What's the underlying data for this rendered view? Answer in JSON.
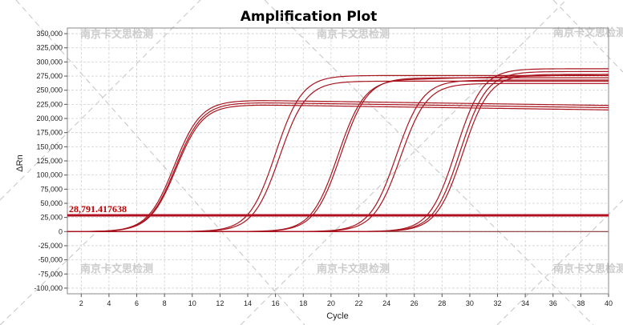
{
  "chart_data": {
    "type": "line",
    "title": "Amplification Plot",
    "xlabel": "Cycle",
    "ylabel": "ΔRn",
    "xlim": [
      1,
      40
    ],
    "ylim": [
      -110000,
      360000
    ],
    "xticks": [
      2,
      4,
      6,
      8,
      10,
      12,
      14,
      16,
      18,
      20,
      22,
      24,
      26,
      28,
      30,
      32,
      34,
      36,
      38,
      40
    ],
    "yticks": [
      -100000,
      -75000,
      -50000,
      -25000,
      0,
      25000,
      50000,
      75000,
      100000,
      125000,
      150000,
      175000,
      200000,
      225000,
      250000,
      275000,
      300000,
      325000,
      350000
    ],
    "ytick_labels": [
      "-100,000",
      "-75,000",
      "-50,000",
      "-25,000",
      "0",
      "25,000",
      "50,000",
      "75,000",
      "100,000",
      "125,000",
      "150,000",
      "175,000",
      "200,000",
      "225,000",
      "250,000",
      "275,000",
      "300,000",
      "325,000",
      "350,000"
    ],
    "grid": true,
    "threshold": {
      "value": 28791.417638,
      "label": "28,791.417638",
      "color": "#b01020"
    },
    "series_color": "#a8141e",
    "watermark_text": "南京卡文思检测",
    "curves": [
      {
        "ct": 8.7,
        "plateau": 232000,
        "slope": 1.05,
        "drift": -350
      },
      {
        "ct": 8.8,
        "plateau": 228000,
        "slope": 1.05,
        "drift": -350
      },
      {
        "ct": 8.85,
        "plateau": 224000,
        "slope": 1.05,
        "drift": -350
      },
      {
        "ct": 16.0,
        "plateau": 276000,
        "slope": 1.05,
        "drift": 0
      },
      {
        "ct": 16.3,
        "plateau": 266000,
        "slope": 1.05,
        "drift": 0
      },
      {
        "ct": 20.5,
        "plateau": 270000,
        "slope": 1.05,
        "drift": 600
      },
      {
        "ct": 20.7,
        "plateau": 272000,
        "slope": 1.05,
        "drift": 0
      },
      {
        "ct": 24.7,
        "plateau": 268000,
        "slope": 1.05,
        "drift": 0
      },
      {
        "ct": 25.0,
        "plateau": 262000,
        "slope": 1.05,
        "drift": 0
      },
      {
        "ct": 29.0,
        "plateau": 288000,
        "slope": 1.05,
        "drift": 0
      },
      {
        "ct": 29.3,
        "plateau": 283000,
        "slope": 1.05,
        "drift": 0
      },
      {
        "ct": 29.5,
        "plateau": 278000,
        "slope": 1.05,
        "drift": 0
      }
    ]
  }
}
